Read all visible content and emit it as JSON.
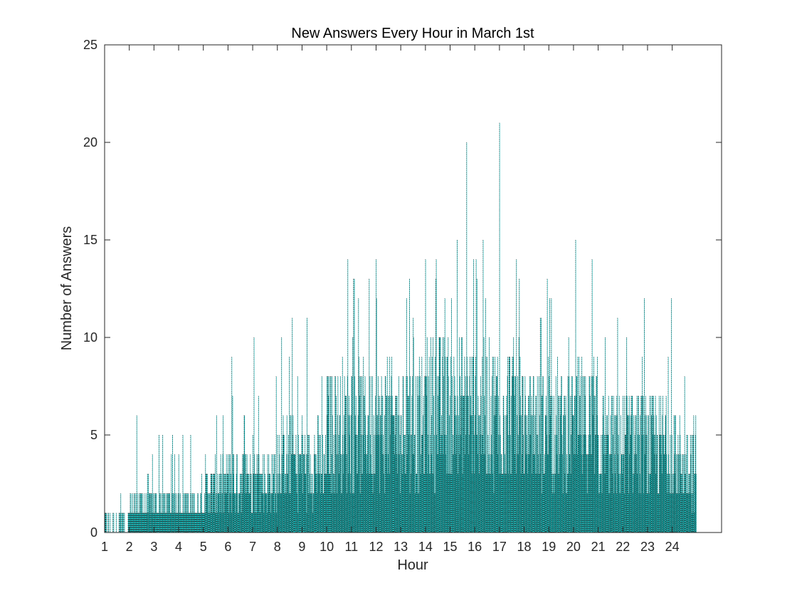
{
  "chart_data": {
    "type": "bar",
    "title": "New Answers Every Hour in March 1st",
    "xlabel": "Hour",
    "ylabel": "Number of Answers",
    "xlim": [
      1,
      26
    ],
    "ylim": [
      0,
      25
    ],
    "x_ticks": [
      1,
      2,
      3,
      4,
      5,
      6,
      7,
      8,
      9,
      10,
      11,
      12,
      13,
      14,
      15,
      16,
      17,
      18,
      19,
      20,
      21,
      22,
      23,
      24
    ],
    "y_ticks": [
      0,
      5,
      10,
      15,
      20,
      25
    ],
    "grid": false,
    "bar_color": "#00bfbf",
    "edge_color": "#1f1f1f",
    "edge_style": "dotted",
    "bins_per_hour": 60,
    "data_x_start": 1.0,
    "data_x_end": 24.98,
    "hourly_levels": [
      {
        "hour": 1,
        "typical": 0.5,
        "peak": 2
      },
      {
        "hour": 2,
        "typical": 1.5,
        "peak": 6
      },
      {
        "hour": 3,
        "typical": 1.5,
        "peak": 5
      },
      {
        "hour": 4,
        "typical": 1.5,
        "peak": 5
      },
      {
        "hour": 5,
        "typical": 2.5,
        "peak": 6
      },
      {
        "hour": 6,
        "typical": 3,
        "peak": 9
      },
      {
        "hour": 7,
        "typical": 3,
        "peak": 10
      },
      {
        "hour": 8,
        "typical": 4,
        "peak": 11
      },
      {
        "hour": 9,
        "typical": 4,
        "peak": 11
      },
      {
        "hour": 10,
        "typical": 6,
        "peak": 14
      },
      {
        "hour": 11,
        "typical": 6,
        "peak": 13
      },
      {
        "hour": 12,
        "typical": 6,
        "peak": 14
      },
      {
        "hour": 13,
        "typical": 6,
        "peak": 13
      },
      {
        "hour": 14,
        "typical": 7,
        "peak": 14
      },
      {
        "hour": 15,
        "typical": 7,
        "peak": 20
      },
      {
        "hour": 16,
        "typical": 7,
        "peak": 15
      },
      {
        "hour": 17,
        "typical": 7,
        "peak": 21
      },
      {
        "hour": 18,
        "typical": 6,
        "peak": 13
      },
      {
        "hour": 19,
        "typical": 6,
        "peak": 12
      },
      {
        "hour": 20,
        "typical": 6,
        "peak": 15
      },
      {
        "hour": 21,
        "typical": 5,
        "peak": 11
      },
      {
        "hour": 22,
        "typical": 5,
        "peak": 12
      },
      {
        "hour": 23,
        "typical": 5,
        "peak": 12
      },
      {
        "hour": 24,
        "typical": 4,
        "peak": 8
      }
    ]
  }
}
